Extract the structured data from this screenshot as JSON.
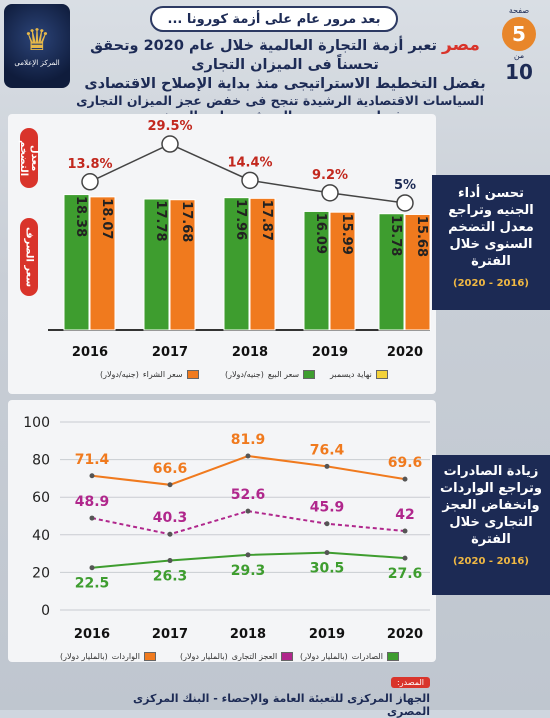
{
  "header": {
    "banner": "بعد مرور عام على أزمة كورونا ...",
    "headline_lead": "مصر",
    "headline_rest": "تعبر أزمة التجارة العالمية خلال عام 2020 وتحقق تحسناً فى الميزان التجارى",
    "headline_line2": "بفضل التخطيط الاستراتيجى منذ بداية الإصلاح الاقتصادى",
    "subhead": "السياسات الاقتصادية الرشيدة تنجح فى خفض عجز الميزان التجارى بفضل تحسن سعر الصرف وتراجع التضخم"
  },
  "logo": {
    "caption": "المركز الإعلامى"
  },
  "page": {
    "label": "صفحة",
    "current": "5",
    "of": "من",
    "total": "10"
  },
  "side1": {
    "text": "تحسن أداء الجنيه وتراجع معدل التضخم السنوى خلال الفترة",
    "period": "(2016 - 2020)"
  },
  "side2": {
    "text": "زيادة الصادرات وتراجع الواردات وانخفاض العجز التجارى خلال الفترة",
    "period": "(2016 - 2020)"
  },
  "chart1": {
    "pill_top": "معدل التضخم",
    "pill_bottom": "سعر الصرف",
    "legend": {
      "buy": "سعر الشراء",
      "buy_unit": "(جنيه/دولار)",
      "sell": "سعر البيع",
      "sell_unit": "(جنيه/دولار)",
      "eoy": "نهاية ديسمبر"
    }
  },
  "chart2": {
    "legend": {
      "imports": "الواردات",
      "deficit": "العجز التجارى",
      "exports": "الصادرات",
      "unit": "(بالمليار دولار)"
    }
  },
  "source": {
    "label": "المصدر:",
    "text": "الجهاز المركزى للتعبئة العامة والإحصاء - البنك المركزى المصرى"
  },
  "colors": {
    "green": "#3e9d2f",
    "orange": "#f07a1e",
    "red": "#c2281e",
    "navy": "#1c2a54",
    "magenta": "#b0278c"
  },
  "chart_data": [
    {
      "type": "bar",
      "categories": [
        "2016",
        "2017",
        "2018",
        "2019",
        "2020"
      ],
      "series": [
        {
          "name": "سعر البيع",
          "values": [
            18.38,
            17.78,
            17.96,
            16.09,
            15.78
          ]
        },
        {
          "name": "سعر الشراء",
          "values": [
            18.07,
            17.68,
            17.87,
            15.99,
            15.68
          ]
        }
      ],
      "inflation_line": {
        "values": [
          13.8,
          29.5,
          14.4,
          9.2,
          5
        ],
        "labels": [
          "13.8%",
          "29.5%",
          "14.4%",
          "9.2%",
          "5%"
        ]
      }
    },
    {
      "type": "line",
      "categories": [
        "2016",
        "2017",
        "2018",
        "2019",
        "2020"
      ],
      "series": [
        {
          "name": "الواردات",
          "values": [
            71.4,
            66.6,
            81.9,
            76.4,
            69.6
          ]
        },
        {
          "name": "العجز التجارى",
          "values": [
            48.9,
            40.3,
            52.6,
            45.9,
            42
          ]
        },
        {
          "name": "الصادرات",
          "values": [
            22.5,
            26.3,
            29.3,
            30.5,
            27.6
          ]
        }
      ],
      "ylim": [
        0,
        100
      ],
      "yticks": [
        0,
        20,
        40,
        60,
        80,
        100
      ],
      "grid": true
    }
  ]
}
